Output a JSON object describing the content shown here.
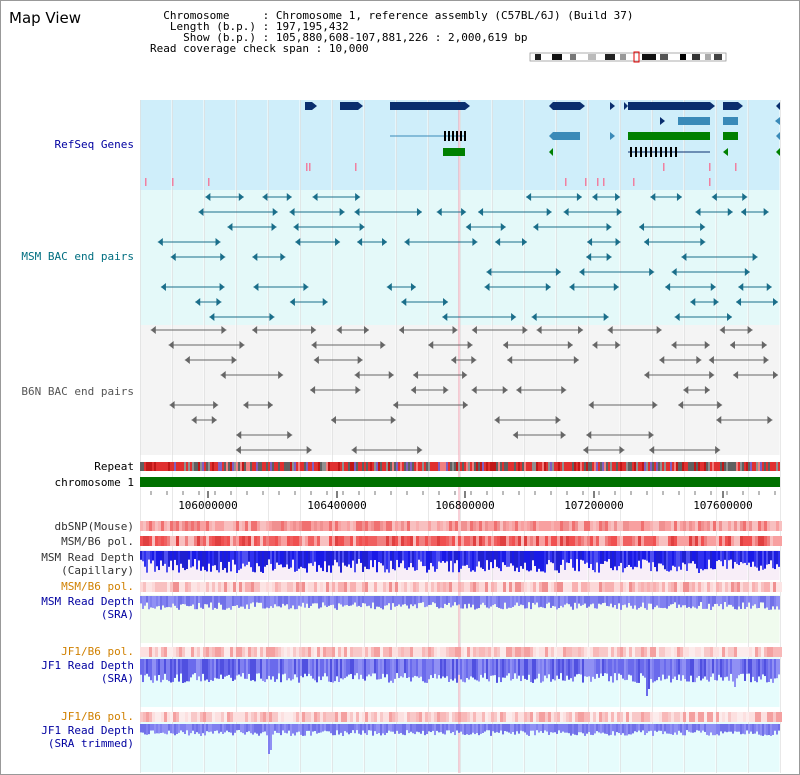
{
  "app": {
    "title": "Map View"
  },
  "info": {
    "chromosome_label": "Chromosome",
    "chromosome_value": "Chromosome 1, reference assembly (C57BL/6J) (Build 37)",
    "length_label": "Length (b.p.)",
    "length_value": "197,195,432",
    "show_label": "Show (b.p.)",
    "show_value": "105,880,608-107,881,226 : 2,000,619 bp",
    "coverage_label": "Read coverage check span",
    "coverage_value": "10,000"
  },
  "tracks": {
    "refseq": "RefSeq Genes",
    "msm_bac": "MSM BAC end pairs",
    "b6n_bac": "B6N BAC end pairs",
    "repeat": "Repeat",
    "chromosome": "chromosome 1",
    "dbsnp": "dbSNP(Mouse)",
    "msm_b6_pol_1": "MSM/B6 pol.",
    "msm_depth_cap_1": "MSM Read Depth",
    "msm_depth_cap_2": "(Capillary)",
    "msm_b6_pol_2": "MSM/B6 pol.",
    "msm_depth_sra_1": "MSM Read Depth",
    "msm_depth_sra_2": "(SRA)",
    "jf1_b6_pol_1": "JF1/B6 pol.",
    "jf1_depth_sra_1": "JF1 Read Depth",
    "jf1_depth_sra_2": "(SRA)",
    "jf1_b6_pol_2": "JF1/B6 pol.",
    "jf1_depth_trim_1": "JF1 Read Depth",
    "jf1_depth_trim_2": "(SRA trimmed)"
  },
  "axis": {
    "ticks": [
      "106000000",
      "106400000",
      "106800000",
      "107200000",
      "107600000"
    ]
  },
  "colors": {
    "refseq_dark": "#0a2e6e",
    "refseq_mid": "#3a8ab8",
    "refseq_green": "#008000",
    "msm_bac": "#1a6e8a",
    "b6n_bac": "#666666",
    "depth_blue": "#1a1ae6",
    "depth_light": "#8080f0",
    "pol_red": "#f04040",
    "label_blue": "#0000a0",
    "label_teal": "#006e80",
    "label_orange": "#d08000"
  }
}
